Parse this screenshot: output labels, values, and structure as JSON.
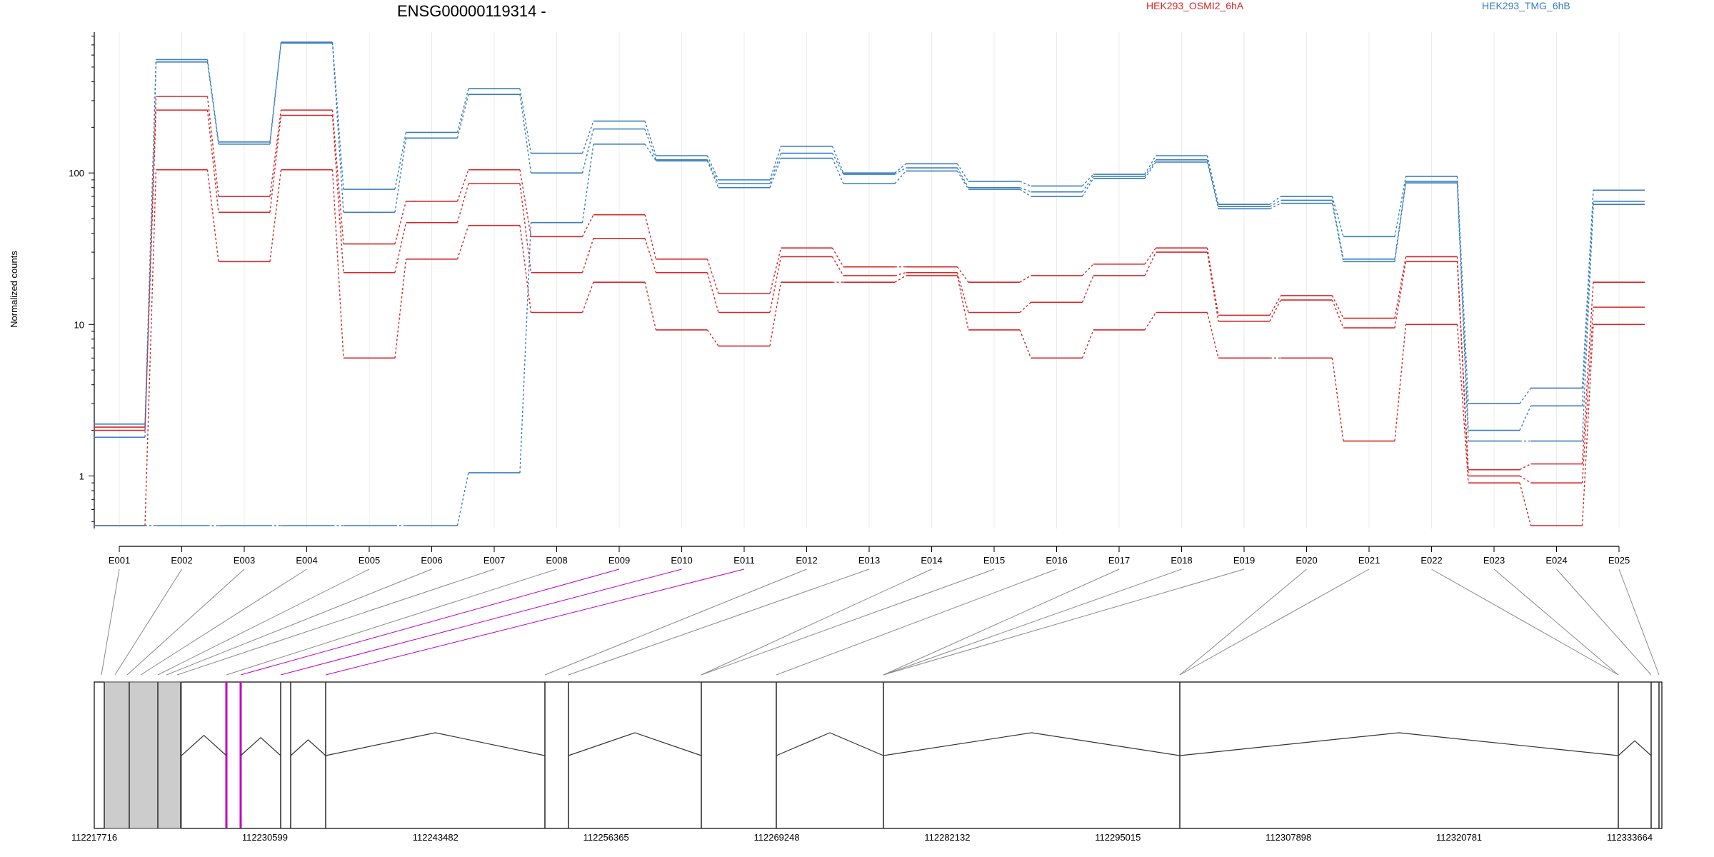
{
  "chart_data": {
    "type": "line",
    "title": "ENSG00000119314 -",
    "ylabel": "Normalized counts",
    "yscale": "log",
    "ylim": [
      0.45,
      850
    ],
    "yticks": [
      1,
      10,
      100
    ],
    "yticklabels": [
      "1",
      "10",
      "100"
    ],
    "grid": "vertical",
    "legend_placement": "top",
    "legend": [
      {
        "label": "HEK293_OSMI2_6hA",
        "color": "#d62728"
      },
      {
        "label": "HEK293_TMG_6hB",
        "color": "#3a7ebf"
      }
    ],
    "categories": [
      "E001",
      "E002",
      "E003",
      "E004",
      "E005",
      "E006",
      "E007",
      "E008",
      "E009",
      "E010",
      "E011",
      "E012",
      "E013",
      "E014",
      "E015",
      "E016",
      "E017",
      "E018",
      "E019",
      "E020",
      "E021",
      "E022",
      "E023",
      "E024",
      "E025"
    ],
    "series": [
      {
        "group": "HEK293_OSMI2_6hA",
        "color": "#d62728",
        "values": [
          2.0,
          320,
          70,
          260,
          34,
          65,
          105,
          38,
          53,
          27,
          16,
          32,
          24,
          24,
          19,
          21,
          25,
          32,
          11.5,
          15.5,
          11,
          28,
          1.1,
          1.2,
          19
        ]
      },
      {
        "group": "HEK293_OSMI2_6hA",
        "color": "#d62728",
        "values": [
          2.1,
          260,
          55,
          240,
          22,
          47,
          85,
          22,
          37,
          22,
          12,
          28,
          21,
          22,
          12,
          14,
          21,
          30,
          10.5,
          14.5,
          9.5,
          26,
          1.0,
          0.9,
          13
        ]
      },
      {
        "group": "HEK293_OSMI2_6hA",
        "color": "#d62728",
        "values": [
          0.47,
          105,
          26,
          105,
          6.0,
          27,
          45,
          12,
          19,
          9.2,
          7.2,
          19,
          19,
          21,
          9.2,
          6.0,
          9.2,
          12,
          6.0,
          6.0,
          1.7,
          10,
          0.9,
          0.47,
          10
        ]
      },
      {
        "group": "HEK293_TMG_6hB",
        "color": "#3a7ebf",
        "values": [
          2.2,
          560,
          160,
          730,
          78,
          185,
          360,
          135,
          220,
          130,
          90,
          150,
          100,
          115,
          88,
          82,
          98,
          130,
          62,
          70,
          38,
          95,
          3.0,
          3.8,
          77
        ]
      },
      {
        "group": "HEK293_TMG_6hB",
        "color": "#3a7ebf",
        "values": [
          1.8,
          540,
          155,
          720,
          55,
          170,
          330,
          100,
          195,
          122,
          85,
          135,
          98,
          108,
          80,
          75,
          95,
          122,
          60,
          66,
          27,
          88,
          2.0,
          2.9,
          65
        ]
      },
      {
        "group": "HEK293_TMG_6hB",
        "color": "#3a7ebf",
        "values": [
          0.47,
          0.47,
          0.47,
          0.47,
          0.47,
          0.47,
          1.05,
          47,
          155,
          120,
          80,
          125,
          85,
          103,
          78,
          70,
          92,
          118,
          58,
          63,
          26,
          86,
          1.7,
          1.7,
          62
        ]
      }
    ],
    "genomic_axis": {
      "ticklabels": [
        "112217716",
        "112230599",
        "112243482",
        "112256365",
        "112269248",
        "112282132",
        "112295015",
        "112307898",
        "112320781",
        "112333664"
      ]
    }
  }
}
